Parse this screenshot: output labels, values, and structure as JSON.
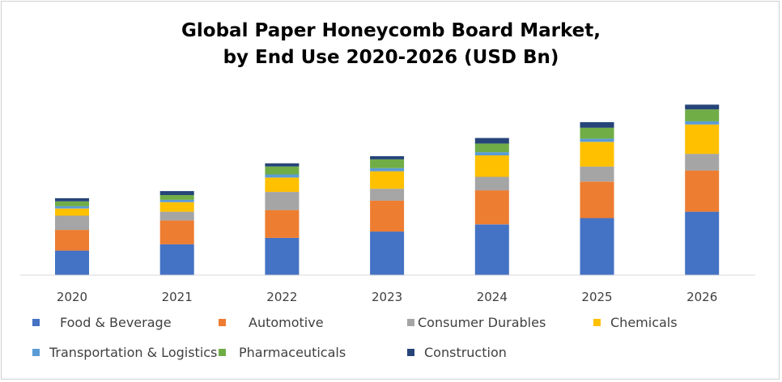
{
  "chart_data": {
    "type": "bar",
    "stacked": true,
    "title_lines": [
      "Global Paper Honeycomb Board Market,",
      "by End Use 2020-2026 (USD Bn)"
    ],
    "categories": [
      "2020",
      "2021",
      "2022",
      "2023",
      "2024",
      "2025",
      "2026"
    ],
    "series": [
      {
        "name": "Food & Beverage",
        "color": "#4472C4",
        "values": [
          31,
          39,
          47,
          55,
          64,
          72,
          80
        ]
      },
      {
        "name": "Automotive",
        "color": "#ED7D31",
        "values": [
          26,
          30,
          35,
          39,
          43,
          46,
          52
        ]
      },
      {
        "name": "Consumer Durables",
        "color": "#A5A5A5",
        "values": [
          18,
          11,
          23,
          15,
          17,
          19,
          21
        ]
      },
      {
        "name": "Chemicals",
        "color": "#FFC000",
        "values": [
          9,
          12,
          18,
          22,
          27,
          31,
          37
        ]
      },
      {
        "name": "Transportation & Logistics",
        "color": "#5B9BD5",
        "values": [
          3,
          3,
          4,
          4,
          4,
          4,
          4
        ]
      },
      {
        "name": "Pharmaceuticals",
        "color": "#70AD47",
        "values": [
          6,
          6,
          10,
          11,
          11,
          14,
          15
        ]
      },
      {
        "name": "Construction",
        "color": "#264478",
        "values": [
          4,
          5,
          4,
          4,
          7,
          7,
          6
        ]
      }
    ],
    "ylim": [
      0,
      220
    ],
    "grid": false,
    "legend_position": "bottom"
  }
}
